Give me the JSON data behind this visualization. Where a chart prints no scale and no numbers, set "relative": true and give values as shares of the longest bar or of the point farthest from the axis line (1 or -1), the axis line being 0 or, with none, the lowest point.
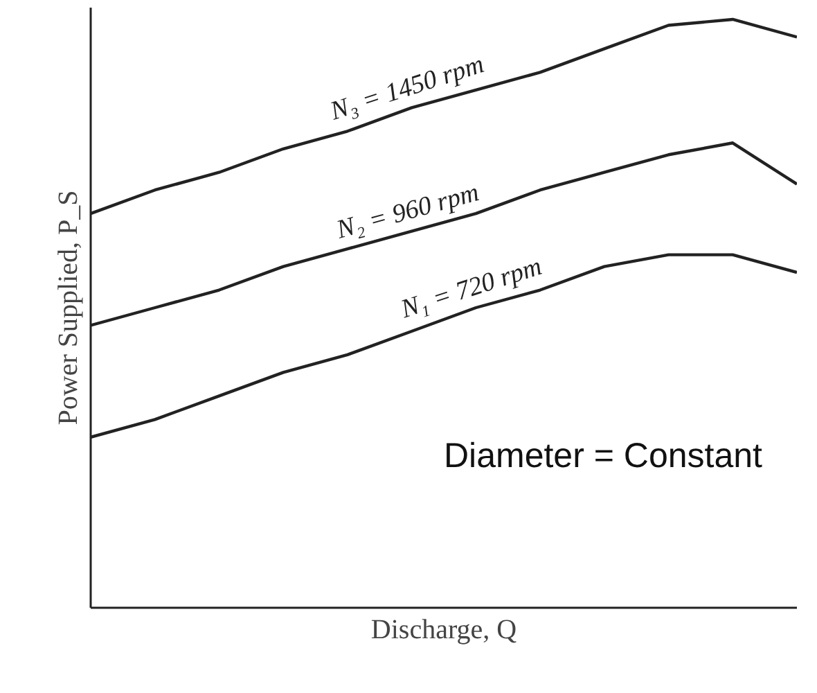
{
  "chart_data": {
    "type": "line",
    "relative": true,
    "xlabel": "Discharge, Q",
    "ylabel": "Power Supplied, P_S",
    "categories": [
      null,
      null,
      null,
      null,
      null,
      null,
      null,
      null,
      null,
      null,
      null,
      null
    ],
    "series": [
      {
        "name": "N₃ = 1450 rpm",
        "color": "#222222",
        "values": [
          0.67,
          0.71,
          0.74,
          0.78,
          0.81,
          0.85,
          0.88,
          0.91,
          0.95,
          0.99,
          1.0,
          0.97
        ]
      },
      {
        "name": "N₂ = 960 rpm",
        "color": "#222222",
        "values": [
          0.48,
          0.51,
          0.54,
          0.58,
          0.61,
          0.64,
          0.67,
          0.71,
          0.74,
          0.77,
          0.79,
          0.72
        ]
      },
      {
        "name": "N₁ = 720 rpm",
        "color": "#222222",
        "values": [
          0.29,
          0.32,
          0.36,
          0.4,
          0.43,
          0.47,
          0.51,
          0.54,
          0.58,
          0.6,
          0.6,
          0.57
        ]
      }
    ],
    "annotations": [
      "Diameter = Constant"
    ],
    "marker": "none",
    "line_style": "solid"
  }
}
